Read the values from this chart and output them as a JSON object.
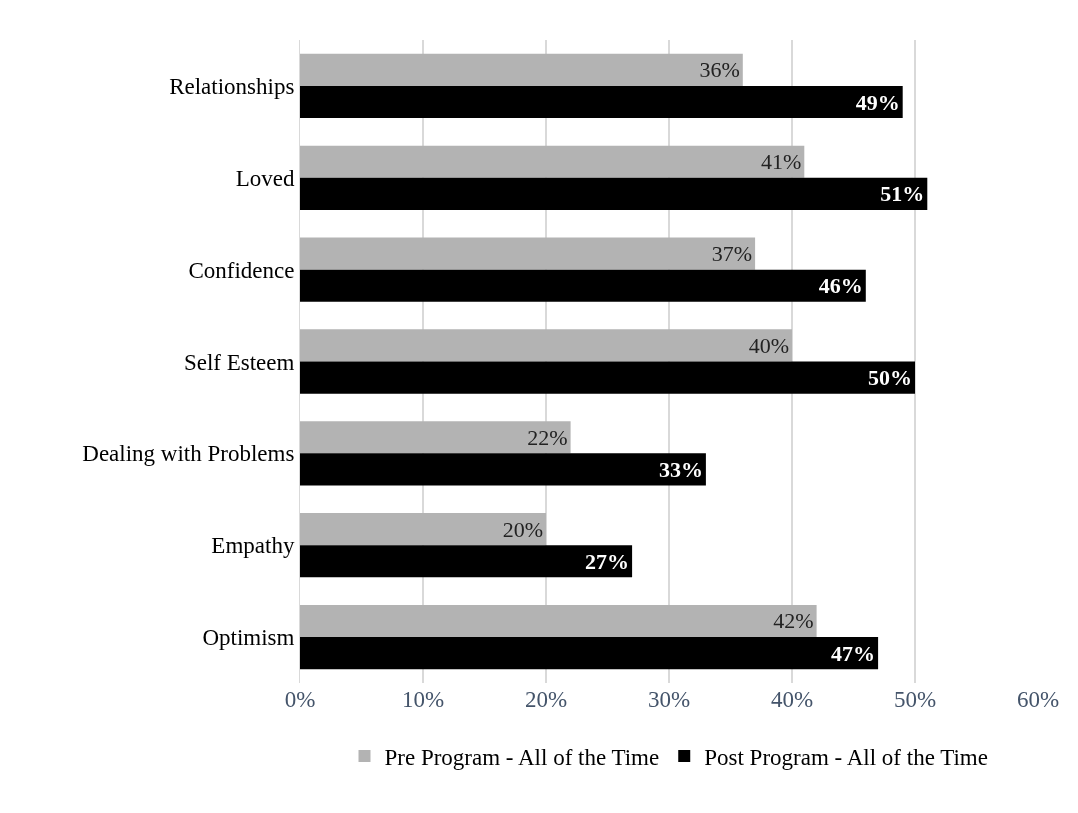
{
  "chart_data": {
    "type": "bar",
    "orientation": "horizontal",
    "categories": [
      "Relationships",
      "Loved",
      "Confidence",
      "Self Esteem",
      "Dealing with Problems",
      "Empathy",
      "Optimism"
    ],
    "series": [
      {
        "name": "Pre Program - All of the Time",
        "color": "#b3b3b3",
        "values": [
          36,
          41,
          37,
          40,
          22,
          20,
          42
        ],
        "value_labels": [
          "36%",
          "41%",
          "37%",
          "40%",
          "22%",
          "20%",
          "42%"
        ]
      },
      {
        "name": "Post Program - All of the Time",
        "color": "#000000",
        "values": [
          49,
          51,
          46,
          50,
          33,
          27,
          47
        ],
        "value_labels": [
          "49%",
          "51%",
          "46%",
          "50%",
          "33%",
          "27%",
          "47%"
        ]
      }
    ],
    "xlim": [
      0,
      60
    ],
    "xticks": [
      {
        "value": 0,
        "label": "0%"
      },
      {
        "value": 10,
        "label": "10%"
      },
      {
        "value": 20,
        "label": "20%"
      },
      {
        "value": 30,
        "label": "30%"
      },
      {
        "value": 40,
        "label": "40%"
      },
      {
        "value": 50,
        "label": "50%"
      },
      {
        "value": 60,
        "label": "60%"
      }
    ],
    "grid": "x",
    "legend": "bottom"
  }
}
